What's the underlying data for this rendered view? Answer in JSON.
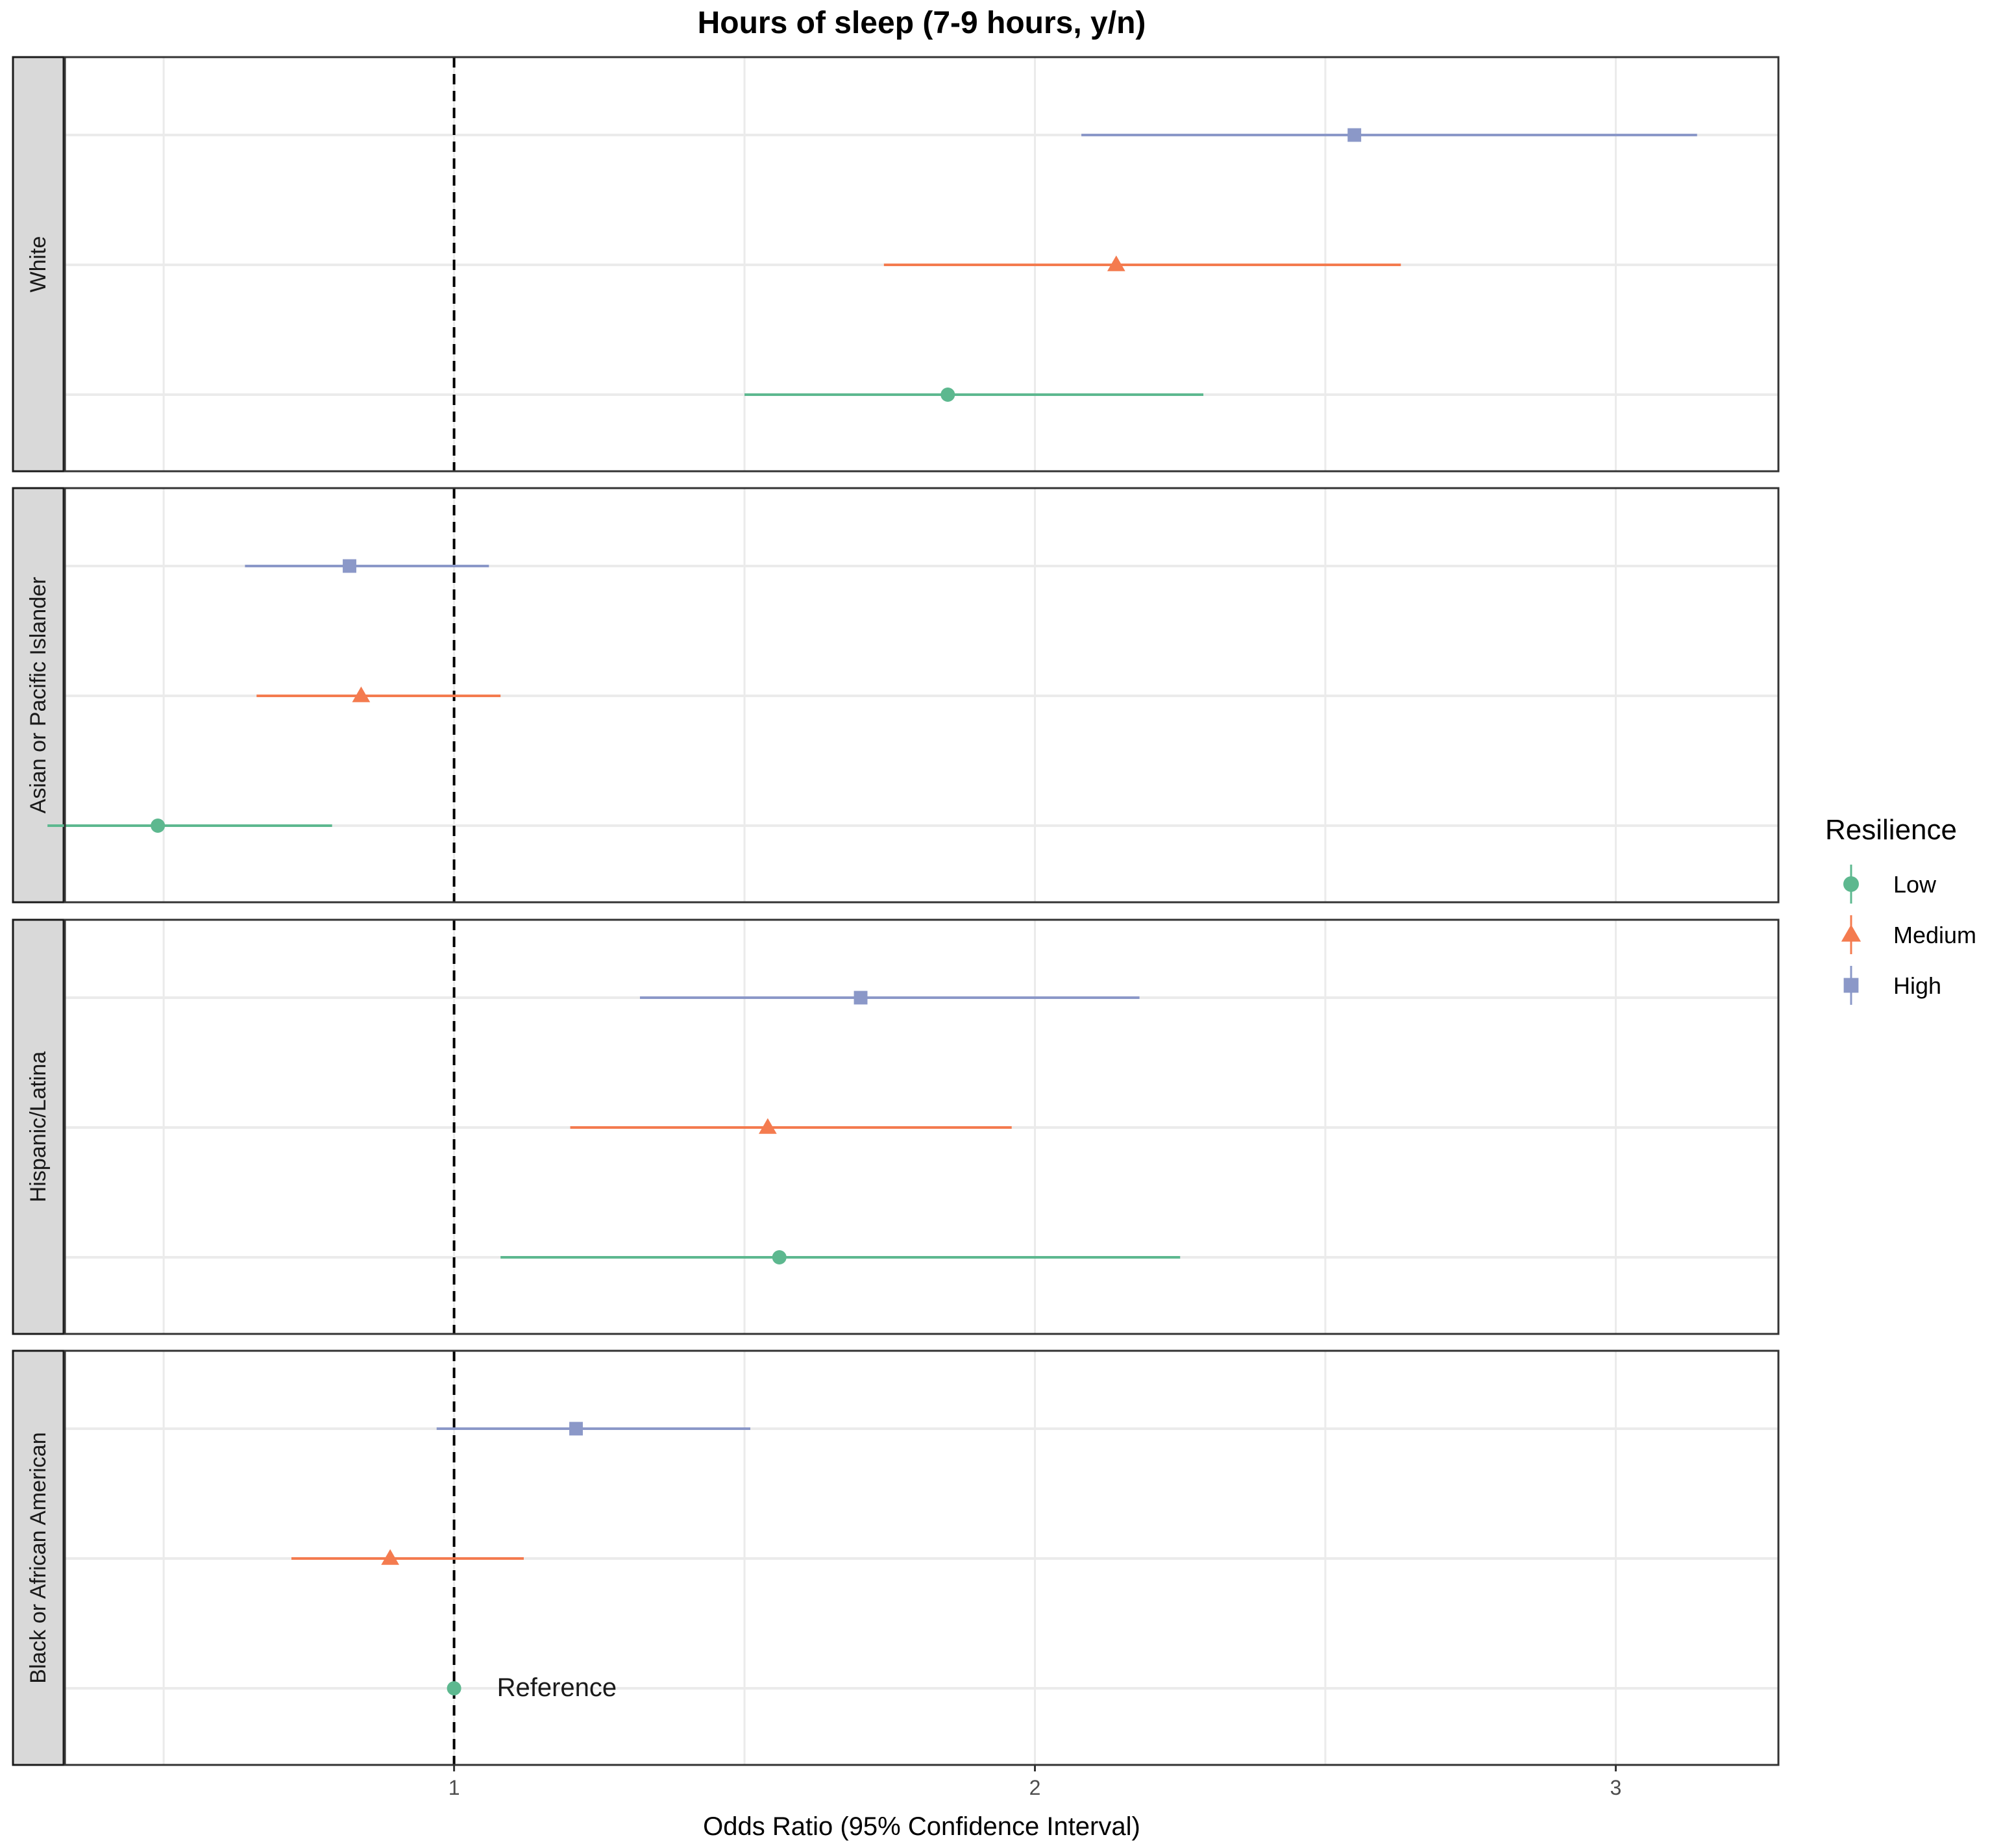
{
  "chart_data": {
    "type": "forest",
    "title": "Hours of sleep (7-9 hours, y/n)",
    "xlabel": "Odds Ratio (95% Confidence Interval)",
    "ylabel": "",
    "xlim": [
      0.33,
      3.28
    ],
    "x_ticks": [
      1,
      2,
      3
    ],
    "x_tick_labels": [
      "1",
      "2",
      "3"
    ],
    "x_minor_gridlines": [
      0.5,
      1.5,
      2.5
    ],
    "reference_line": 1,
    "grid": true,
    "legend": {
      "title": "Resilience",
      "placement": "right",
      "entries": [
        {
          "name": "Low",
          "color": "#5db88f",
          "shape": "circle"
        },
        {
          "name": "Medium",
          "color": "#f47b4f",
          "shape": "triangle"
        },
        {
          "name": "High",
          "color": "#8b98c8",
          "shape": "square"
        }
      ]
    },
    "panels": [
      {
        "name": "White",
        "points": [
          {
            "level": "High",
            "or": 2.55,
            "low": 2.08,
            "high": 3.14
          },
          {
            "level": "Medium",
            "or": 2.14,
            "low": 1.74,
            "high": 2.63
          },
          {
            "level": "Low",
            "or": 1.85,
            "low": 1.5,
            "high": 2.29
          }
        ]
      },
      {
        "name": "Asian or Pacific Islander",
        "points": [
          {
            "level": "High",
            "or": 0.82,
            "low": 0.64,
            "high": 1.06
          },
          {
            "level": "Medium",
            "or": 0.84,
            "low": 0.66,
            "high": 1.08
          },
          {
            "level": "Low",
            "or": 0.49,
            "low": 0.3,
            "high": 0.79
          }
        ]
      },
      {
        "name": "Hispanic/Latina",
        "points": [
          {
            "level": "High",
            "or": 1.7,
            "low": 1.32,
            "high": 2.18
          },
          {
            "level": "Medium",
            "or": 1.54,
            "low": 1.2,
            "high": 1.96
          },
          {
            "level": "Low",
            "or": 1.56,
            "low": 1.08,
            "high": 2.25
          }
        ]
      },
      {
        "name": "Black or African American",
        "points": [
          {
            "level": "High",
            "or": 1.21,
            "low": 0.97,
            "high": 1.51
          },
          {
            "level": "Medium",
            "or": 0.89,
            "low": 0.72,
            "high": 1.12
          },
          {
            "level": "Low",
            "or": 1.0,
            "low": 1.0,
            "high": 1.0,
            "label": "Reference"
          }
        ]
      }
    ]
  }
}
